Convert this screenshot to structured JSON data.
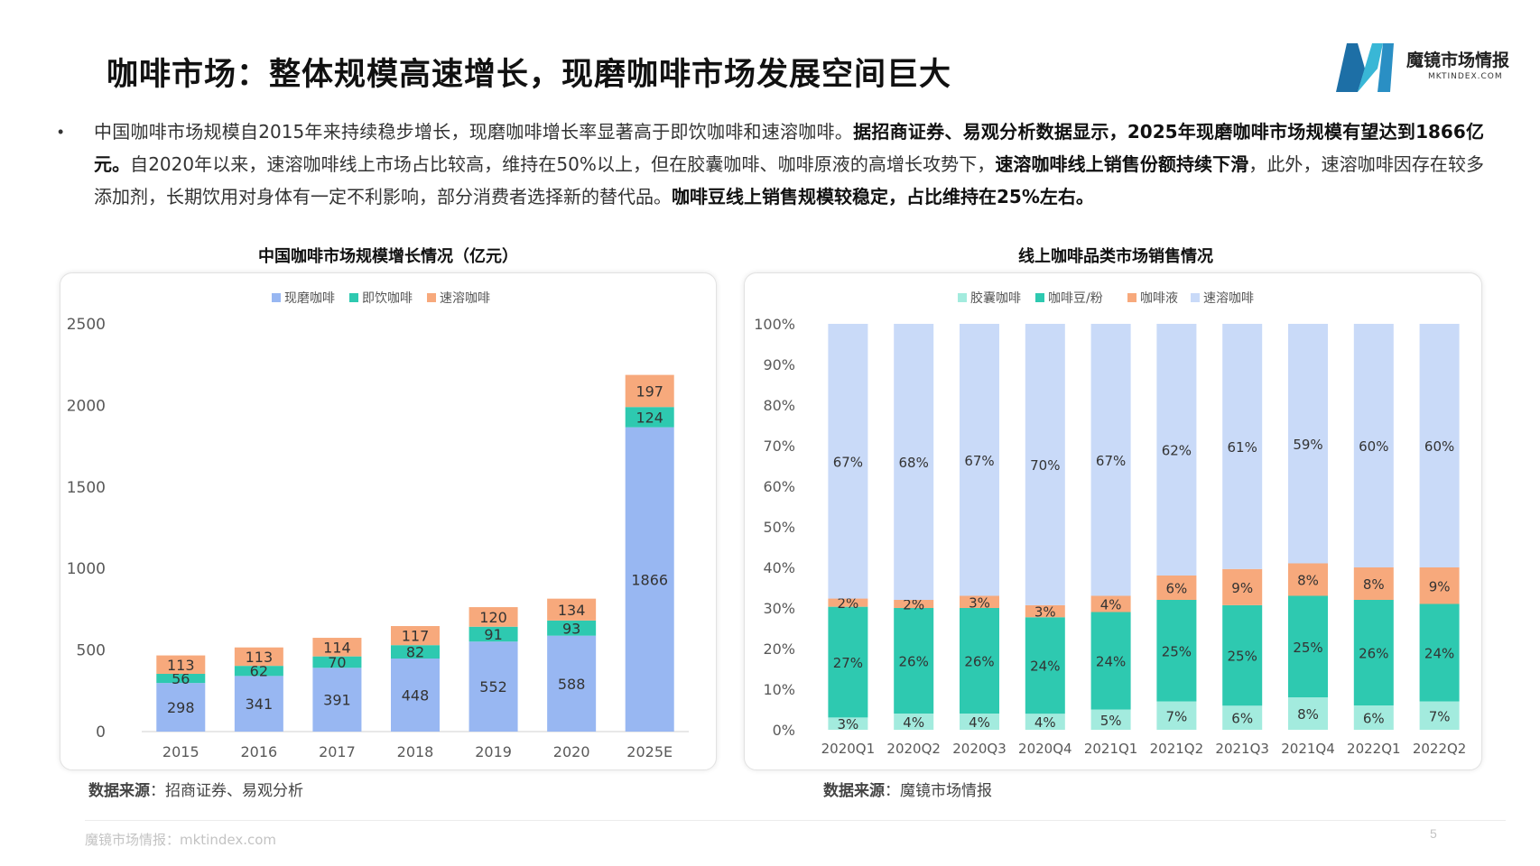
{
  "header": {
    "title": "咖啡市场：整体规模高速增长，现磨咖啡市场发展空间巨大",
    "logo_name": "魔镜市场情报",
    "logo_sub": "MKTINDEX.COM"
  },
  "description": {
    "bullet": "•",
    "segments": [
      {
        "text": "中国咖啡市场规模自2015年来持续稳步增长，现磨咖啡增长率显著高于即饮咖啡和速溶咖啡。",
        "bold": false
      },
      {
        "text": "据招商证券、易观分析数据显示，2025年现磨咖啡市场规模有望达到1866亿元。",
        "bold": true
      },
      {
        "text": "自2020年以来，速溶咖啡线上市场占比较高，维持在50%以上，但在胶囊咖啡、咖啡原液的高增长攻势下，",
        "bold": false
      },
      {
        "text": "速溶咖啡线上销售份额持续下滑",
        "bold": true
      },
      {
        "text": "，此外，速溶咖啡因存在较多添加剂，长期饮用对身体有一定不利影响，部分消费者选择新的替代品。",
        "bold": false
      },
      {
        "text": "咖啡豆线上销售规模较稳定，占比维持在25%左右。",
        "bold": true
      }
    ]
  },
  "left_chart": {
    "heading": "中国咖啡市场规模增长情况（亿元）",
    "source_label": "数据来源",
    "source_text": "：招商证券、易观分析"
  },
  "right_chart": {
    "heading": "线上咖啡品类市场销售情况",
    "source_label": "数据来源",
    "source_text": "：魔镜市场情报"
  },
  "footer": {
    "text": "魔镜市场情报：mktindex.com",
    "page": "5"
  },
  "colors": {
    "freshly_ground": "#98b7f2",
    "ready_to_drink": "#2ec9b0",
    "instant_left": "#f7a97c",
    "capsule": "#a3ebde",
    "beans": "#2ec9b0",
    "liquid": "#f7a97c",
    "instant_right": "#c9daf8",
    "logo_dark": "#1d6fa6",
    "logo_light": "#39b7d6"
  },
  "chart_data": [
    {
      "type": "bar",
      "stacked": true,
      "title": "中国咖啡市场规模增长情况（亿元）",
      "categories": [
        "2015",
        "2016",
        "2017",
        "2018",
        "2019",
        "2020",
        "2025E"
      ],
      "series": [
        {
          "name": "现磨咖啡",
          "color": "#98b7f2",
          "values": [
            298,
            341,
            391,
            448,
            552,
            588,
            1866
          ]
        },
        {
          "name": "即饮咖啡",
          "color": "#2ec9b0",
          "values": [
            56,
            62,
            70,
            82,
            91,
            93,
            124
          ]
        },
        {
          "name": "速溶咖啡",
          "color": "#f7a97c",
          "values": [
            113,
            113,
            114,
            117,
            120,
            134,
            197
          ]
        }
      ],
      "ylim": [
        0,
        2500
      ],
      "yticks": [
        0,
        500,
        1000,
        1500,
        2000,
        2500
      ],
      "grid": false,
      "legend": "top-center"
    },
    {
      "type": "bar",
      "stacked": true,
      "percent": true,
      "title": "线上咖啡品类市场销售情况",
      "categories": [
        "2020Q1",
        "2020Q2",
        "2020Q3",
        "2020Q4",
        "2021Q1",
        "2021Q2",
        "2021Q3",
        "2021Q4",
        "2022Q1",
        "2022Q2"
      ],
      "series": [
        {
          "name": "胶囊咖啡",
          "color": "#a3ebde",
          "values": [
            3,
            4,
            4,
            4,
            5,
            7,
            6,
            8,
            6,
            7
          ]
        },
        {
          "name": "咖啡豆/粉",
          "color": "#2ec9b0",
          "values": [
            27,
            26,
            26,
            24,
            24,
            25,
            25,
            25,
            26,
            24
          ]
        },
        {
          "name": "咖啡液",
          "color": "#f7a97c",
          "values": [
            2,
            2,
            3,
            3,
            4,
            6,
            9,
            8,
            8,
            9
          ]
        },
        {
          "name": "速溶咖啡",
          "color": "#c9daf8",
          "values": [
            67,
            68,
            67,
            70,
            67,
            62,
            61,
            59,
            60,
            60
          ]
        }
      ],
      "ylim": [
        0,
        100
      ],
      "yticks": [
        "0%",
        "10%",
        "20%",
        "30%",
        "40%",
        "50%",
        "60%",
        "70%",
        "80%",
        "90%",
        "100%"
      ],
      "grid": false,
      "legend": "top-center"
    }
  ]
}
